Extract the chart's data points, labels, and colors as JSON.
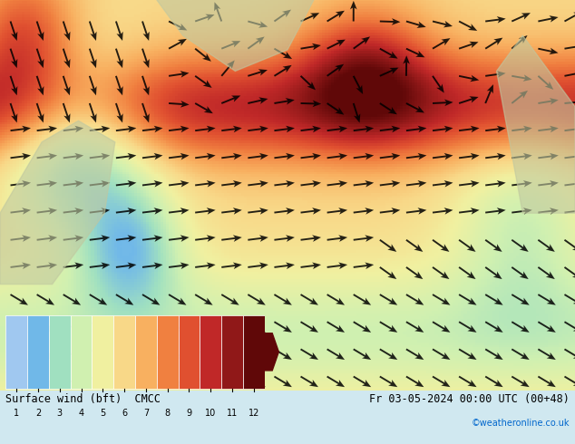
{
  "title_left": "Surface wind (bft)  CMCC",
  "title_right": "Fr 03-05-2024 00:00 UTC (00+48)",
  "colorbar_label": "",
  "colorbar_ticks": [
    1,
    2,
    3,
    4,
    5,
    6,
    7,
    8,
    9,
    10,
    11,
    12
  ],
  "colorbar_colors": [
    "#a0c8f0",
    "#70b8e8",
    "#a0e0c0",
    "#d0f0b0",
    "#f0f0a0",
    "#f8d888",
    "#f8b060",
    "#f08040",
    "#e05030",
    "#c02828",
    "#901818",
    "#600808"
  ],
  "website": "©weatheronline.co.uk",
  "bg_color": "#e8f4f8",
  "map_bg": "#c8dff0",
  "fig_width": 6.34,
  "fig_height": 4.9,
  "dpi": 100
}
